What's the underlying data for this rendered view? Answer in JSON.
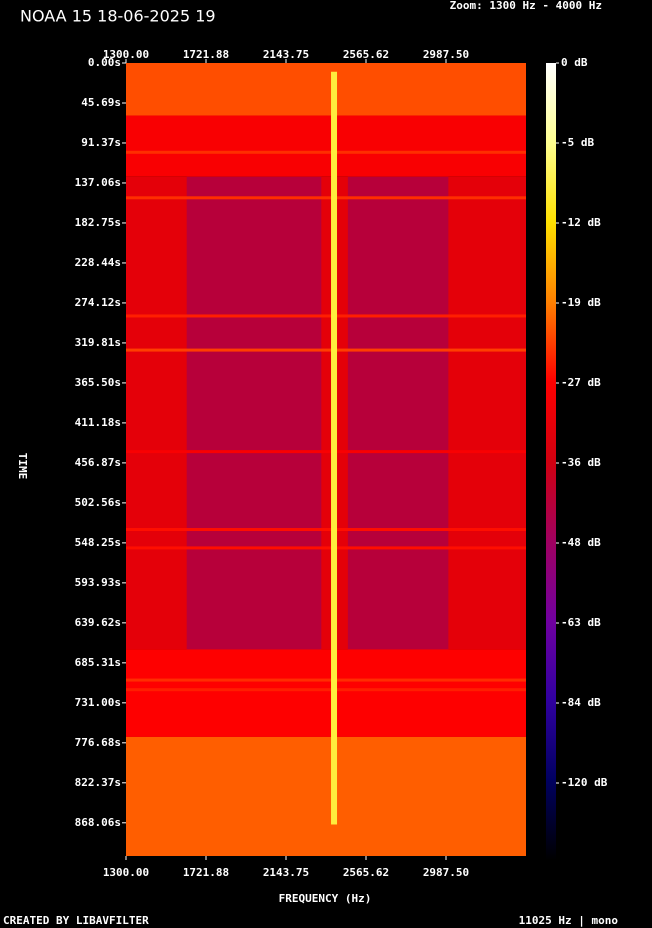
{
  "chart_data": {
    "type": "spectrogram",
    "title": "NOAA 15 18-06-2025 19",
    "subtitle": "Zoom: 1300 Hz - 4000 Hz",
    "xlabel": "FREQUENCY (Hz)",
    "ylabel": "TIME",
    "footer_left": "CREATED BY LIBAVFILTER",
    "footer_right": "11025 Hz | mono",
    "xlim": [
      1300,
      3409.375
    ],
    "xticks": [
      {
        "value": 1300,
        "label": "1300.00"
      },
      {
        "value": 1721.88,
        "label": "1721.88"
      },
      {
        "value": 2143.75,
        "label": "2143.75"
      },
      {
        "value": 2565.62,
        "label": "2565.62"
      },
      {
        "value": 2987.5,
        "label": "2987.50"
      }
    ],
    "ylim": [
      0,
      906
    ],
    "yticks": [
      {
        "value": 0,
        "label": "0.00s"
      },
      {
        "value": 45.69,
        "label": "45.69s"
      },
      {
        "value": 91.37,
        "label": "91.37s"
      },
      {
        "value": 137.06,
        "label": "137.06s"
      },
      {
        "value": 182.75,
        "label": "182.75s"
      },
      {
        "value": 228.44,
        "label": "228.44s"
      },
      {
        "value": 274.12,
        "label": "274.12s"
      },
      {
        "value": 319.81,
        "label": "319.81s"
      },
      {
        "value": 365.5,
        "label": "365.50s"
      },
      {
        "value": 411.18,
        "label": "411.18s"
      },
      {
        "value": 456.87,
        "label": "456.87s"
      },
      {
        "value": 502.56,
        "label": "502.56s"
      },
      {
        "value": 548.25,
        "label": "548.25s"
      },
      {
        "value": 593.93,
        "label": "593.93s"
      },
      {
        "value": 639.62,
        "label": "639.62s"
      },
      {
        "value": 685.31,
        "label": "685.31s"
      },
      {
        "value": 731,
        "label": "731.00s"
      },
      {
        "value": 776.68,
        "label": "776.68s"
      },
      {
        "value": 822.37,
        "label": "822.37s"
      },
      {
        "value": 868.06,
        "label": "868.06s"
      }
    ],
    "colorbar": {
      "ticks": [
        {
          "value": 0,
          "label": "0 dB"
        },
        {
          "value": -5,
          "label": "-5 dB"
        },
        {
          "value": -12,
          "label": "-12 dB"
        },
        {
          "value": -19,
          "label": "-19 dB"
        },
        {
          "value": -27,
          "label": "-27 dB"
        },
        {
          "value": -36,
          "label": "-36 dB"
        },
        {
          "value": -48,
          "label": "-48 dB"
        },
        {
          "value": -63,
          "label": "-63 dB"
        },
        {
          "value": -84,
          "label": "-84 dB"
        },
        {
          "value": -120,
          "label": "-120 dB"
        }
      ]
    },
    "cells": [
      {
        "t": [
          0,
          60
        ],
        "f": [
          1300,
          3409.375
        ],
        "db": -22
      },
      {
        "t": [
          60,
          130
        ],
        "f": [
          1300,
          3409.375
        ],
        "db": -28
      },
      {
        "t": [
          130,
          670
        ],
        "f": [
          1300,
          3409.375
        ],
        "db": -32
      },
      {
        "t": [
          130,
          670
        ],
        "f": [
          1620,
          2330
        ],
        "db": -42
      },
      {
        "t": [
          130,
          670
        ],
        "f": [
          2470,
          3000
        ],
        "db": -42
      },
      {
        "t": [
          670,
          770
        ],
        "f": [
          1300,
          3409.375
        ],
        "db": -27
      },
      {
        "t": [
          770,
          906
        ],
        "f": [
          1300,
          3409.375
        ],
        "db": -21
      }
    ],
    "lines": [
      {
        "t": 102,
        "db": -24
      },
      {
        "t": 154,
        "db": -24
      },
      {
        "t": 289,
        "db": -25
      },
      {
        "t": 328,
        "db": -23
      },
      {
        "t": 444,
        "db": -28
      },
      {
        "t": 533,
        "db": -26
      },
      {
        "t": 554,
        "db": -26
      },
      {
        "t": 705,
        "db": -24
      },
      {
        "t": 716,
        "db": -25
      }
    ],
    "signal": {
      "f": 2397,
      "t": [
        10,
        870
      ],
      "db": -9
    }
  }
}
